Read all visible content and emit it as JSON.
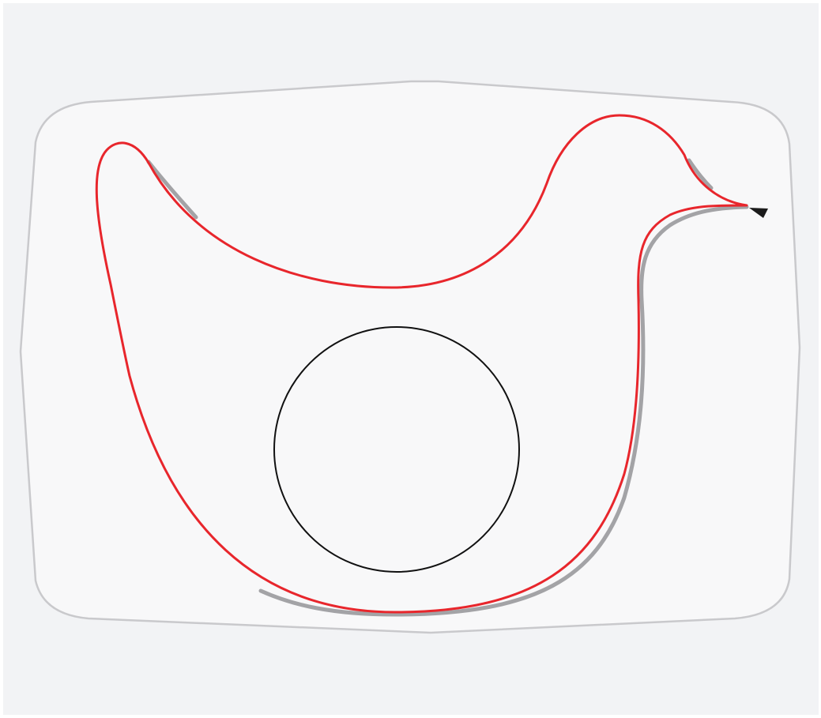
{
  "drawing": {
    "shapes": [
      "outer-plate",
      "bird-outline",
      "bird-shadow",
      "inner-circle",
      "beak-triangle"
    ],
    "colors": {
      "page_background": "#f2f3f5",
      "plate_fill": "#f8f8f9",
      "plate_stroke": "#c9c9cc",
      "bird_stroke": "#e8262c",
      "shadow_stroke": "#a3a3a6",
      "circle_stroke": "#111111",
      "beak_fill": "#1b1b1b"
    }
  }
}
